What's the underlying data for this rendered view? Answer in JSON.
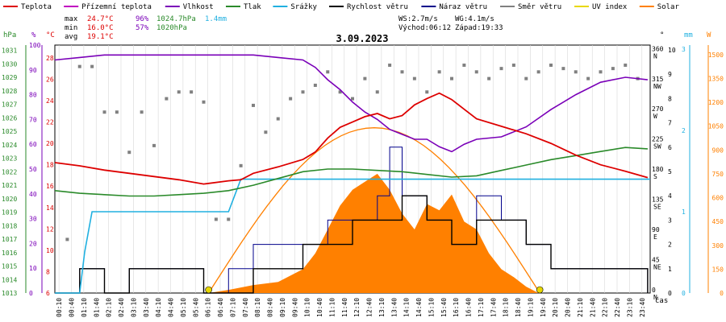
{
  "chart_data": {
    "type": "line",
    "title": "3.09.2023",
    "legend": [
      {
        "name": "Teplota",
        "color": "#dd0000"
      },
      {
        "name": "Přízemní teplota",
        "color": "#c000c0"
      },
      {
        "name": "Vlhkost",
        "color": "#7a00b8"
      },
      {
        "name": "Tlak",
        "color": "#2a8a2a"
      },
      {
        "name": "Srážky",
        "color": "#20b0e0"
      },
      {
        "name": "Rychlost větru",
        "color": "#000000"
      },
      {
        "name": "Náraz větru",
        "color": "#00008b"
      },
      {
        "name": "Směr větru",
        "color": "#808080"
      },
      {
        "name": "UV index",
        "color": "#e8d800"
      },
      {
        "name": "Solar",
        "color": "#ff8000"
      }
    ],
    "stats": {
      "max_label": "max",
      "max_temp": "24.7°C",
      "max_hum": "96%",
      "max_press": "1024.7hPa",
      "max_rain": "1.4mm",
      "min_label": "min",
      "min_temp": "16.0°C",
      "min_hum": "57%",
      "min_press": "1020hPa",
      "avg_label": "avg",
      "avg_temp": "19.1°C",
      "ws": "WS:2.7m/s",
      "wg": "WG:4.1m/s",
      "sunrise": "Východ:06:12",
      "sunset": "Západ:19:33"
    },
    "axes": {
      "hpa_unit": "hPa",
      "pct_unit": "%",
      "c_unit": "°C",
      "dir_unit": "°",
      "mm_unit": "mm",
      "w_unit": "W",
      "x_unit": "čas",
      "hpa_ticks": [
        "1013",
        "1014",
        "1015",
        "1016",
        "1017",
        "1018",
        "1019",
        "1020",
        "1021",
        "1022",
        "1023",
        "1024",
        "1025",
        "1026",
        "1027",
        "1028",
        "1029",
        "1030",
        "1031"
      ],
      "pct_ticks": [
        "0",
        "10",
        "20",
        "30",
        "40",
        "50",
        "60",
        "70",
        "80",
        "90",
        "100"
      ],
      "c_ticks": [
        "6",
        "8",
        "10",
        "12",
        "14",
        "16",
        "18",
        "20",
        "22",
        "24",
        "26",
        "28"
      ],
      "dir_ticks": [
        {
          "deg": "0",
          "abbr": "N"
        },
        {
          "deg": "45",
          "abbr": "NE"
        },
        {
          "deg": "90",
          "abbr": "E"
        },
        {
          "deg": "135",
          "abbr": "SE"
        },
        {
          "deg": "180",
          "abbr": "S"
        },
        {
          "deg": "225",
          "abbr": "SW"
        },
        {
          "deg": "270",
          "abbr": "W"
        },
        {
          "deg": "315",
          "abbr": "NW"
        },
        {
          "deg": "360",
          "abbr": "N"
        }
      ],
      "ms_ticks": [
        "0",
        "1",
        "2",
        "3",
        "4",
        "5",
        "6",
        "7",
        "8",
        "9",
        "10"
      ],
      "mm_ticks": [
        "0",
        "1",
        "2",
        "3"
      ],
      "w_ticks": [
        "0",
        "150",
        "300",
        "450",
        "600",
        "750",
        "900",
        "1050",
        "1200",
        "1350",
        "1500"
      ],
      "x_ticks": [
        "00:10",
        "00:40",
        "01:10",
        "01:40",
        "02:10",
        "02:40",
        "03:10",
        "03:40",
        "04:10",
        "04:40",
        "05:10",
        "05:40",
        "06:10",
        "06:40",
        "07:10",
        "07:40",
        "08:10",
        "08:40",
        "09:10",
        "09:40",
        "10:10",
        "10:40",
        "11:10",
        "11:40",
        "12:10",
        "12:40",
        "13:10",
        "13:40",
        "14:10",
        "14:40",
        "15:10",
        "15:40",
        "16:10",
        "16:40",
        "17:10",
        "17:40",
        "18:10",
        "18:40",
        "19:10",
        "19:40",
        "20:10",
        "20:40",
        "21:10",
        "21:40",
        "22:10",
        "22:40",
        "23:10",
        "23:40"
      ]
    },
    "series": [
      {
        "name": "Teplota",
        "unit": "°C",
        "x": [
          0,
          1,
          2,
          3,
          4,
          5,
          6,
          7,
          7.5,
          8,
          9,
          10,
          10.5,
          11,
          11.5,
          12,
          12.5,
          13,
          13.5,
          14,
          14.5,
          15,
          15.5,
          16,
          16.5,
          17,
          18,
          19,
          20,
          21,
          22,
          23,
          23.9
        ],
        "y": [
          18.2,
          17.9,
          17.5,
          17.2,
          16.9,
          16.6,
          16.2,
          16.5,
          16.6,
          17.2,
          17.8,
          18.5,
          19.2,
          20.5,
          21.5,
          22.0,
          22.5,
          22.8,
          22.3,
          22.6,
          23.6,
          24.2,
          24.7,
          24.1,
          23.2,
          22.3,
          21.6,
          20.9,
          20.0,
          18.9,
          18.0,
          17.4,
          16.8
        ]
      },
      {
        "name": "Vlhkost",
        "unit": "%",
        "x": [
          0,
          1,
          2,
          3,
          4,
          5,
          6,
          7,
          8,
          9,
          10,
          10.5,
          11,
          11.5,
          12,
          12.5,
          13,
          13.5,
          14,
          14.5,
          15,
          15.5,
          16,
          16.5,
          17,
          18,
          19,
          20,
          21,
          22,
          23,
          23.9
        ],
        "y": [
          94,
          95,
          96,
          96,
          96,
          96,
          96,
          96,
          96,
          95,
          94,
          91,
          86,
          82,
          77,
          73,
          70,
          66,
          64,
          62,
          62,
          59,
          57,
          60,
          62,
          63,
          67,
          74,
          80,
          85,
          87,
          86
        ]
      },
      {
        "name": "Tlak",
        "unit": "hPa",
        "x": [
          0,
          1,
          2,
          3,
          4,
          5,
          6,
          7,
          8,
          9,
          10,
          11,
          12,
          13,
          14,
          15,
          16,
          17,
          18,
          19,
          20,
          21,
          22,
          23,
          23.9
        ],
        "y": [
          1020.6,
          1020.4,
          1020.3,
          1020.2,
          1020.2,
          1020.3,
          1020.4,
          1020.6,
          1021.0,
          1021.5,
          1022.0,
          1022.2,
          1022.2,
          1022.1,
          1022.0,
          1021.8,
          1021.6,
          1021.7,
          1022.1,
          1022.5,
          1022.9,
          1023.2,
          1023.5,
          1023.8,
          1023.7
        ]
      },
      {
        "name": "Srážky",
        "unit": "mm",
        "x": [
          0,
          1.0,
          1.2,
          1.5,
          2,
          7,
          7.5,
          8,
          10,
          24
        ],
        "y": [
          0,
          0,
          0.5,
          1.0,
          1.0,
          1.0,
          1.4,
          1.4,
          1.4,
          1.4
        ]
      },
      {
        "name": "Solar",
        "unit": "W",
        "x": [
          6.2,
          7,
          8,
          9,
          10,
          10.5,
          11,
          11.5,
          12,
          12.5,
          13,
          13.5,
          14,
          14.5,
          15,
          15.5,
          16,
          16.5,
          17,
          17.5,
          18,
          18.5,
          19,
          19.5
        ],
        "y": [
          0,
          20,
          50,
          70,
          150,
          250,
          400,
          550,
          650,
          700,
          750,
          650,
          500,
          400,
          560,
          520,
          620,
          450,
          400,
          250,
          150,
          100,
          40,
          0
        ]
      },
      {
        "name": "Rychlost větru",
        "unit": "m/s",
        "x": [
          0,
          1,
          1.5,
          2,
          3,
          5,
          6,
          7,
          8,
          9,
          10,
          11,
          12,
          13,
          14,
          15,
          16,
          17,
          18,
          19,
          20,
          21,
          22,
          23,
          23.9
        ],
        "y": [
          0,
          1,
          1,
          0,
          1,
          1,
          0,
          0,
          1,
          1,
          2,
          2,
          3,
          3,
          4,
          3,
          2,
          3,
          3,
          2,
          1,
          1,
          1,
          1,
          0
        ]
      },
      {
        "name": "Náraz větru",
        "unit": "m/s",
        "x": [
          0,
          1,
          1.5,
          2,
          3,
          5,
          6,
          7,
          8,
          9,
          10,
          11,
          12,
          13,
          13.5,
          14,
          15,
          16,
          17,
          18,
          19,
          20,
          21,
          22,
          23,
          23.9
        ],
        "y": [
          0,
          1,
          1,
          0,
          1,
          1,
          0,
          1,
          2,
          2,
          2,
          3,
          3,
          4,
          6,
          4,
          3,
          2,
          4,
          3,
          2,
          1,
          1,
          1,
          1,
          0
        ]
      },
      {
        "name": "Směr větru",
        "unit": "°",
        "x": [
          0.5,
          1,
          1.5,
          2,
          2.5,
          3,
          3.5,
          4,
          4.5,
          5,
          5.5,
          6,
          6.5,
          7,
          7.5,
          8,
          8.5,
          9,
          9.5,
          10,
          10.5,
          11,
          11.5,
          12,
          12.5,
          13,
          13.5,
          14,
          14.5,
          15,
          15.5,
          16,
          16.5,
          17,
          17.5,
          18,
          18.5,
          19,
          19.5,
          20,
          20.5,
          21,
          21.5,
          22,
          22.5,
          23,
          23.5
        ],
        "y": [
          80,
          338,
          338,
          270,
          270,
          210,
          270,
          220,
          290,
          300,
          300,
          285,
          110,
          110,
          190,
          280,
          240,
          260,
          290,
          300,
          310,
          330,
          300,
          290,
          320,
          300,
          340,
          330,
          320,
          300,
          330,
          320,
          340,
          330,
          320,
          335,
          340,
          320,
          330,
          340,
          335,
          330,
          320,
          330,
          335,
          340,
          320
        ]
      }
    ],
    "sunrise_marker_hour": 6.2,
    "sunset_marker_hour": 19.55
  }
}
